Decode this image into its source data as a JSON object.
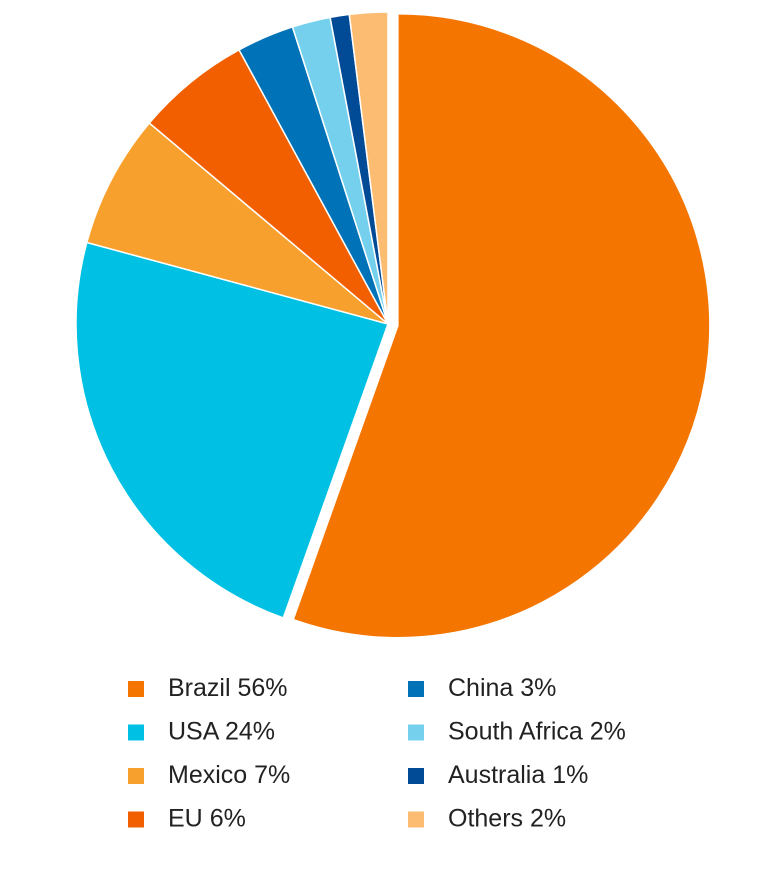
{
  "chart_data": {
    "type": "pie",
    "categories": [
      "Brazil",
      "USA",
      "Mexico",
      "EU",
      "China",
      "South Africa",
      "Australia",
      "Others"
    ],
    "values": [
      56,
      24,
      7,
      6,
      3,
      2,
      1,
      2
    ],
    "value_labels": [
      "56%",
      "24%",
      "7%",
      "6%",
      "3%",
      "2%",
      "1%",
      "2%"
    ],
    "colors": [
      "#f47600",
      "#00c1e3",
      "#f7a02d",
      "#f25f00",
      "#0072b8",
      "#75d0ed",
      "#004a96",
      "#fcbd73"
    ],
    "legend": "bottom"
  }
}
